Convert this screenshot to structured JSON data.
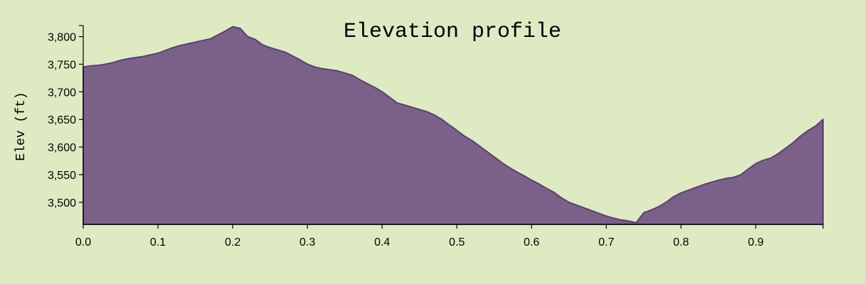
{
  "chart_data": {
    "type": "area",
    "title": "Elevation profile",
    "xlabel": "",
    "ylabel": "Elev (ft)",
    "xlim": [
      0.0,
      0.99
    ],
    "ylim": [
      3460,
      3820
    ],
    "xticks": [
      0.0,
      0.1,
      0.2,
      0.3,
      0.4,
      0.5,
      0.6,
      0.7,
      0.8,
      0.9
    ],
    "xtick_labels": [
      "0.0",
      "0.1",
      "0.2",
      "0.3",
      "0.4",
      "0.5",
      "0.6",
      "0.7",
      "0.8",
      "0.9"
    ],
    "yticks": [
      3500,
      3550,
      3600,
      3650,
      3700,
      3750,
      3800
    ],
    "ytick_labels": [
      "3,500",
      "3,550",
      "3,600",
      "3,650",
      "3,700",
      "3,750",
      "3,800"
    ],
    "grid": false,
    "colors": {
      "fill": "#7b6189",
      "stroke": "#5c3f72",
      "background": "#deebc2"
    },
    "series": [
      {
        "x": [
          0.0,
          0.01,
          0.02,
          0.03,
          0.04,
          0.05,
          0.06,
          0.07,
          0.08,
          0.09,
          0.1,
          0.11,
          0.12,
          0.13,
          0.14,
          0.15,
          0.16,
          0.17,
          0.18,
          0.19,
          0.2,
          0.21,
          0.22,
          0.23,
          0.24,
          0.25,
          0.26,
          0.27,
          0.28,
          0.29,
          0.3,
          0.31,
          0.32,
          0.33,
          0.34,
          0.35,
          0.36,
          0.37,
          0.38,
          0.39,
          0.4,
          0.41,
          0.42,
          0.43,
          0.44,
          0.45,
          0.46,
          0.47,
          0.48,
          0.49,
          0.5,
          0.51,
          0.52,
          0.53,
          0.54,
          0.55,
          0.56,
          0.57,
          0.58,
          0.59,
          0.6,
          0.61,
          0.62,
          0.63,
          0.64,
          0.65,
          0.66,
          0.67,
          0.68,
          0.69,
          0.7,
          0.71,
          0.72,
          0.73,
          0.74,
          0.75,
          0.76,
          0.77,
          0.78,
          0.79,
          0.8,
          0.81,
          0.82,
          0.83,
          0.84,
          0.85,
          0.86,
          0.87,
          0.88,
          0.89,
          0.9,
          0.91,
          0.92,
          0.93,
          0.94,
          0.95,
          0.96,
          0.97,
          0.98,
          0.99
        ],
        "values": [
          3745,
          3747,
          3748,
          3750,
          3753,
          3757,
          3760,
          3762,
          3764,
          3767,
          3770,
          3775,
          3780,
          3784,
          3787,
          3790,
          3793,
          3796,
          3803,
          3810,
          3818,
          3815,
          3800,
          3795,
          3785,
          3780,
          3776,
          3772,
          3765,
          3758,
          3750,
          3745,
          3742,
          3740,
          3738,
          3734,
          3730,
          3722,
          3715,
          3708,
          3700,
          3690,
          3680,
          3676,
          3672,
          3668,
          3664,
          3658,
          3650,
          3640,
          3630,
          3620,
          3612,
          3602,
          3592,
          3582,
          3572,
          3563,
          3555,
          3548,
          3540,
          3533,
          3525,
          3518,
          3508,
          3500,
          3495,
          3490,
          3485,
          3480,
          3475,
          3471,
          3468,
          3466,
          3463,
          3481,
          3486,
          3492,
          3500,
          3510,
          3517,
          3522,
          3527,
          3532,
          3536,
          3540,
          3543,
          3545,
          3550,
          3560,
          3570,
          3576,
          3580,
          3588,
          3598,
          3608,
          3620,
          3630,
          3638,
          3650
        ]
      }
    ]
  }
}
